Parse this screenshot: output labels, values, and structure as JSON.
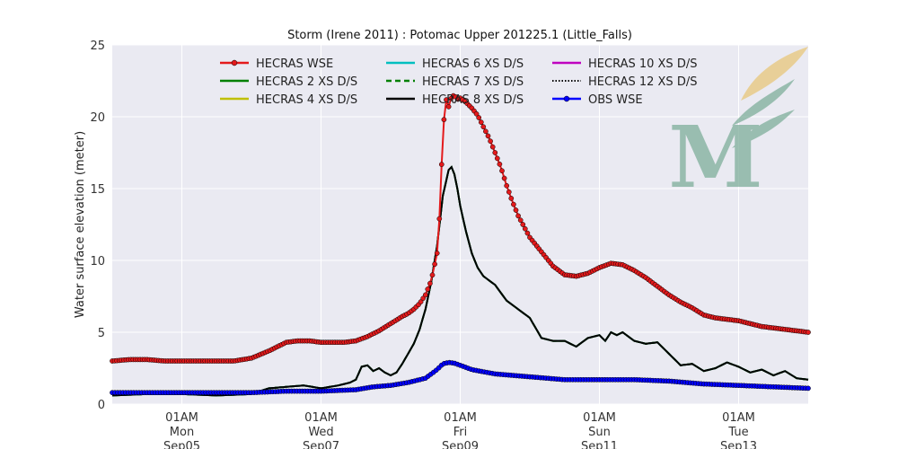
{
  "chart_data": {
    "type": "line",
    "title": "Storm (Irene 2011) : Potomac Upper 201225.1 (Little_Falls)",
    "xlabel": "",
    "ylabel": "Water surface elevation (meter)",
    "xlim_hours": [
      -24,
      216
    ],
    "ylim": [
      0,
      25
    ],
    "yticks": [
      0,
      5,
      10,
      15,
      20,
      25
    ],
    "xticks": [
      {
        "hours": 0,
        "lines": [
          "01AM",
          "Mon",
          "Sep05"
        ]
      },
      {
        "hours": 48,
        "lines": [
          "01AM",
          "Wed",
          "Sep07"
        ]
      },
      {
        "hours": 96,
        "lines": [
          "01AM",
          "Fri",
          "Sep09"
        ]
      },
      {
        "hours": 144,
        "lines": [
          "01AM",
          "Sun",
          "Sep11"
        ]
      },
      {
        "hours": 192,
        "lines": [
          "01AM",
          "Tue",
          "Sep13"
        ]
      }
    ],
    "grid": true,
    "legend_position": "top",
    "background": "#eaeaf2",
    "series": [
      {
        "name": "HECRAS WSE",
        "color": "#e41a1c",
        "style": "solid-marker",
        "x": [
          -24,
          -18,
          -12,
          -6,
          0,
          6,
          12,
          18,
          24,
          30,
          36,
          40,
          44,
          48,
          52,
          56,
          60,
          64,
          68,
          72,
          76,
          78,
          80,
          82,
          84,
          86,
          88,
          89,
          90,
          91,
          92,
          93,
          94,
          95,
          96,
          98,
          100,
          102,
          104,
          106,
          108,
          110,
          112,
          114,
          116,
          120,
          124,
          128,
          132,
          136,
          140,
          144,
          148,
          152,
          156,
          160,
          164,
          168,
          172,
          176,
          180,
          184,
          188,
          192,
          196,
          200,
          204,
          208,
          212,
          216
        ],
        "y": [
          3,
          3.1,
          3.1,
          3,
          3,
          3,
          3,
          3,
          3.2,
          3.7,
          4.3,
          4.4,
          4.4,
          4.3,
          4.3,
          4.3,
          4.4,
          4.7,
          5.1,
          5.6,
          6.1,
          6.3,
          6.6,
          7.0,
          7.6,
          8.6,
          10.5,
          13.5,
          18.8,
          21.3,
          20.7,
          21.4,
          21.5,
          21.2,
          21.3,
          21.0,
          20.6,
          20.1,
          19.3,
          18.5,
          17.5,
          16.5,
          15.2,
          14.1,
          13.1,
          11.6,
          10.6,
          9.6,
          9.0,
          8.9,
          9.1,
          9.5,
          9.8,
          9.7,
          9.3,
          8.8,
          8.2,
          7.6,
          7.1,
          6.7,
          6.2,
          6.0,
          5.9,
          5.8,
          5.6,
          5.4,
          5.3,
          5.2,
          5.1,
          5.0
        ]
      },
      {
        "name": "HECRAS 2 XS D/S",
        "color": "#008000",
        "style": "solid",
        "base": "model"
      },
      {
        "name": "HECRAS 4 XS D/S",
        "color": "#bfbf00",
        "style": "solid",
        "base": "model"
      },
      {
        "name": "HECRAS 6 XS D/S",
        "color": "#00bfbf",
        "style": "solid",
        "base": "model"
      },
      {
        "name": "HECRAS 7 XS D/S",
        "color": "#008000",
        "style": "dashed",
        "base": "model"
      },
      {
        "name": "HECRAS 8 XS D/S",
        "color": "#000000",
        "style": "solid",
        "base": "model"
      },
      {
        "name": "HECRAS 10 XS D/S",
        "color": "#bf00bf",
        "style": "solid",
        "base": "model"
      },
      {
        "name": "HECRAS 12 XS D/S",
        "color": "#000000",
        "style": "dotted",
        "base": "model"
      },
      {
        "name": "OBS WSE",
        "color": "#0000ff",
        "style": "solid-marker",
        "x": [
          -24,
          -12,
          0,
          12,
          24,
          36,
          48,
          60,
          66,
          72,
          78,
          84,
          88,
          90,
          92,
          94,
          96,
          100,
          108,
          120,
          132,
          144,
          156,
          168,
          180,
          192,
          204,
          216
        ],
        "y": [
          0.8,
          0.8,
          0.8,
          0.8,
          0.8,
          0.9,
          0.9,
          1.0,
          1.2,
          1.3,
          1.5,
          1.8,
          2.4,
          2.8,
          2.9,
          2.85,
          2.7,
          2.4,
          2.1,
          1.9,
          1.7,
          1.7,
          1.7,
          1.6,
          1.4,
          1.3,
          1.2,
          1.1
        ]
      }
    ],
    "model_curve": {
      "x": [
        -24,
        -12,
        0,
        12,
        24,
        30,
        36,
        42,
        48,
        54,
        58,
        60,
        62,
        64,
        66,
        68,
        70,
        72,
        74,
        76,
        78,
        80,
        82,
        84,
        86,
        88,
        90,
        92,
        93,
        94,
        95,
        96,
        98,
        100,
        102,
        104,
        106,
        108,
        112,
        116,
        120,
        124,
        128,
        132,
        136,
        140,
        144,
        146,
        148,
        150,
        152,
        156,
        160,
        164,
        168,
        172,
        176,
        180,
        184,
        188,
        192,
        196,
        200,
        204,
        208,
        212,
        216
      ],
      "y": [
        0.6,
        0.7,
        0.7,
        0.6,
        0.7,
        1.1,
        1.2,
        1.3,
        1.1,
        1.3,
        1.5,
        1.7,
        2.6,
        2.7,
        2.3,
        2.5,
        2.2,
        2.0,
        2.2,
        2.8,
        3.5,
        4.2,
        5.2,
        6.6,
        8.5,
        11.0,
        14.5,
        16.3,
        16.5,
        16.0,
        15.0,
        13.8,
        12.0,
        10.5,
        9.5,
        8.9,
        8.6,
        8.3,
        7.2,
        6.6,
        6.0,
        4.6,
        4.4,
        4.4,
        4.0,
        4.6,
        4.8,
        4.4,
        5.0,
        4.8,
        5.0,
        4.4,
        4.2,
        4.3,
        3.5,
        2.7,
        2.8,
        2.3,
        2.5,
        2.9,
        2.6,
        2.2,
        2.4,
        2.0,
        2.3,
        1.8,
        1.7
      ]
    }
  },
  "logo": {
    "letter": "M",
    "color": "#7fae9a",
    "leaf_color": "#e8c77a"
  }
}
